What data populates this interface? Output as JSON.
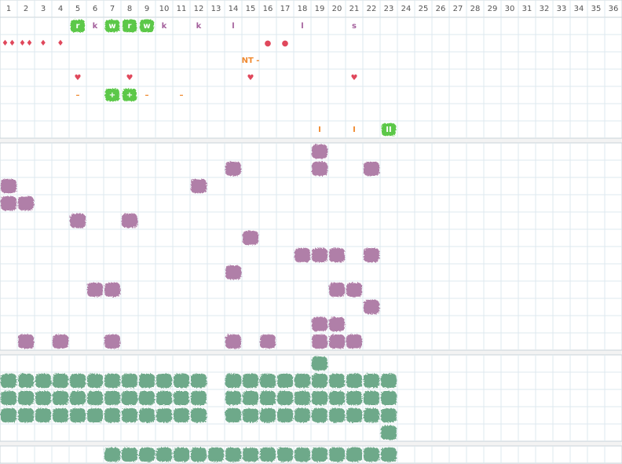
{
  "columns": [
    1,
    2,
    3,
    4,
    5,
    6,
    7,
    8,
    9,
    10,
    11,
    12,
    13,
    14,
    15,
    16,
    17,
    18,
    19,
    20,
    21,
    22,
    23,
    24,
    25,
    26,
    27,
    28,
    29,
    30,
    31,
    32,
    33,
    34,
    35,
    36
  ],
  "markers": {
    "rows": [
      [
        {
          "col": 5,
          "text": "r",
          "kind": "badge"
        },
        {
          "col": 6,
          "text": "k",
          "kind": "purple"
        },
        {
          "col": 7,
          "text": "w",
          "kind": "badge"
        },
        {
          "col": 8,
          "text": "r",
          "kind": "badge"
        },
        {
          "col": 9,
          "text": "w",
          "kind": "badge"
        },
        {
          "col": 10,
          "text": "k",
          "kind": "purple"
        },
        {
          "col": 12,
          "text": "k",
          "kind": "purple"
        },
        {
          "col": 14,
          "text": "l",
          "kind": "purple"
        },
        {
          "col": 18,
          "text": "l",
          "kind": "purple"
        },
        {
          "col": 21,
          "text": "s",
          "kind": "purple"
        }
      ],
      [
        {
          "col": 1,
          "text": "♦♦",
          "kind": "red"
        },
        {
          "col": 2,
          "text": "♦♦",
          "kind": "red"
        },
        {
          "col": 3,
          "text": "♦",
          "kind": "red"
        },
        {
          "col": 4,
          "text": "♦",
          "kind": "red"
        },
        {
          "col": 16,
          "text": "●",
          "kind": "red"
        },
        {
          "col": 17,
          "text": "●",
          "kind": "red"
        }
      ],
      [
        {
          "col": 15,
          "text": "NT -",
          "kind": "orange"
        }
      ],
      [
        {
          "col": 5,
          "text": "♥",
          "kind": "red"
        },
        {
          "col": 8,
          "text": "♥",
          "kind": "red"
        },
        {
          "col": 15,
          "text": "♥",
          "kind": "red"
        },
        {
          "col": 21,
          "text": "♥",
          "kind": "red"
        }
      ],
      [
        {
          "col": 5,
          "text": "–",
          "kind": "orange"
        },
        {
          "col": 7,
          "text": "+",
          "kind": "badge"
        },
        {
          "col": 8,
          "text": "+",
          "kind": "badge"
        },
        {
          "col": 9,
          "text": "–",
          "kind": "orange"
        },
        {
          "col": 11,
          "text": "–",
          "kind": "orange"
        }
      ],
      [],
      [
        {
          "col": 19,
          "text": "I",
          "kind": "orange"
        },
        {
          "col": 21,
          "text": "I",
          "kind": "orange"
        },
        {
          "col": 23,
          "text": "II",
          "kind": "badge"
        }
      ]
    ]
  },
  "hits": {
    "rows": [
      [
        19
      ],
      [
        14,
        19,
        22
      ],
      [
        1,
        12
      ],
      [
        1,
        2
      ],
      [
        5,
        8
      ],
      [
        15
      ],
      [
        18,
        19,
        20,
        22
      ],
      [
        14
      ],
      [
        6,
        7,
        20,
        21
      ],
      [
        22
      ],
      [
        19,
        20
      ],
      [
        2,
        4,
        7,
        14,
        16,
        19,
        20,
        21
      ]
    ]
  },
  "fills": {
    "rows": [
      [
        19
      ],
      [
        1,
        2,
        3,
        4,
        5,
        6,
        7,
        8,
        9,
        10,
        11,
        12,
        14,
        15,
        16,
        17,
        18,
        19,
        20,
        21,
        22,
        23
      ],
      [
        1,
        2,
        3,
        4,
        5,
        6,
        7,
        8,
        9,
        10,
        11,
        12,
        14,
        15,
        16,
        17,
        18,
        19,
        20,
        21,
        22,
        23
      ],
      [
        1,
        2,
        3,
        4,
        5,
        6,
        7,
        8,
        9,
        10,
        11,
        12,
        14,
        15,
        16,
        17,
        18,
        19,
        20,
        21,
        22,
        23
      ],
      [
        23
      ]
    ]
  },
  "base": {
    "rows": [
      [
        7,
        8,
        9,
        10,
        11,
        12,
        13,
        14,
        15,
        16,
        17,
        18,
        19,
        20,
        21,
        22,
        23
      ]
    ]
  }
}
